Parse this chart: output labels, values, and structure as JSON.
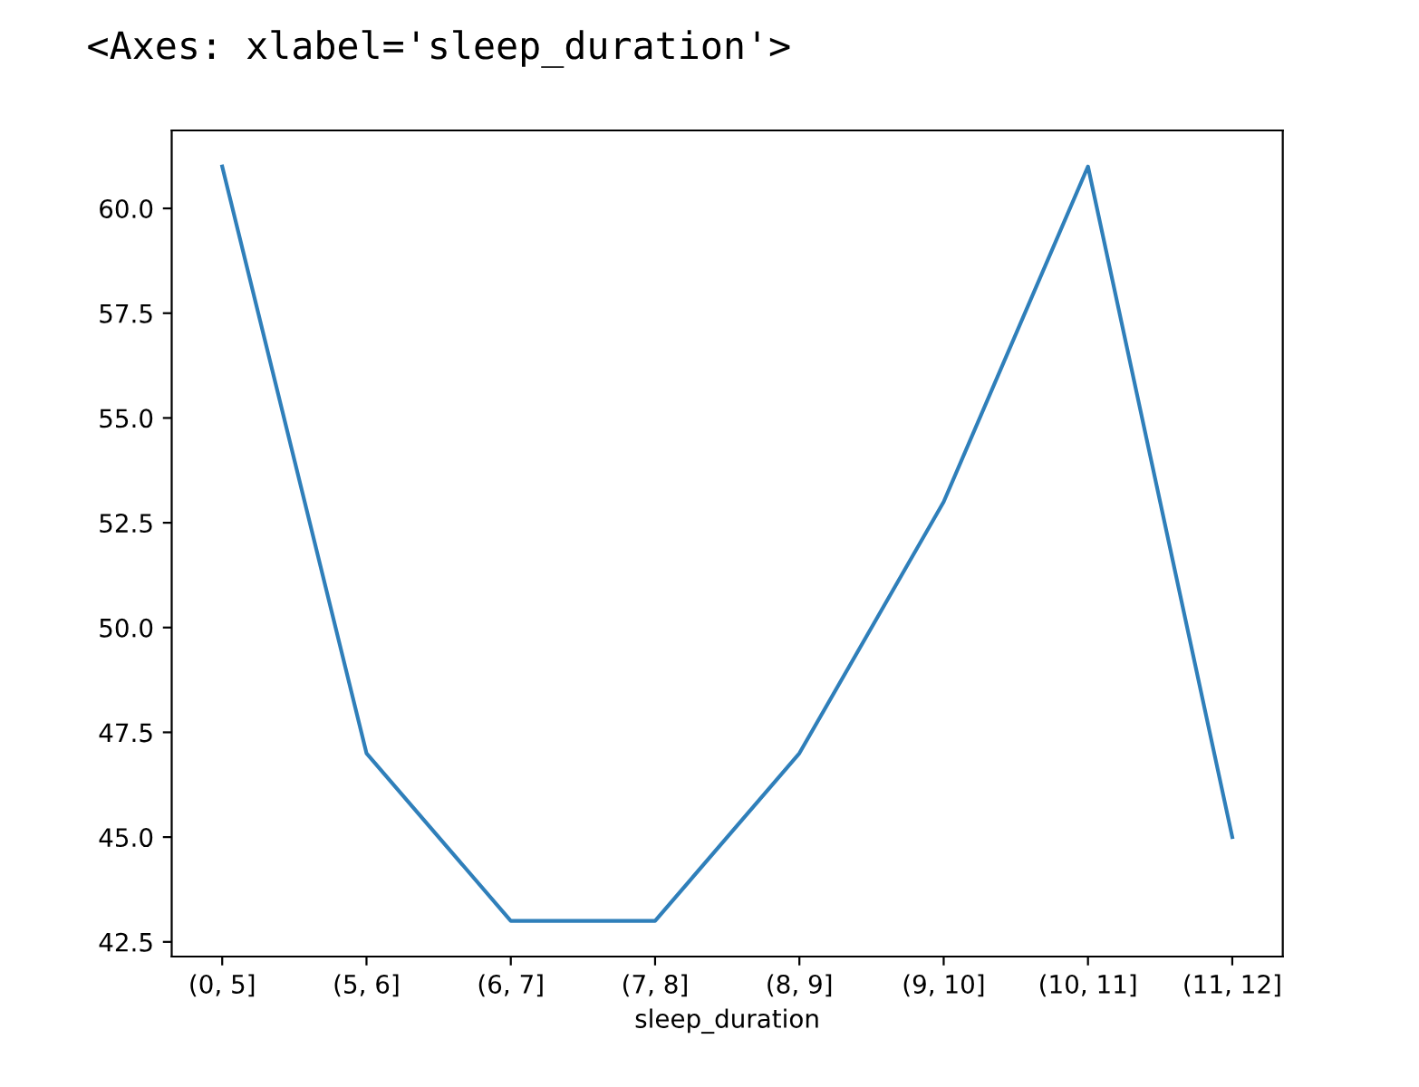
{
  "chart_data": {
    "type": "line",
    "xlabel": "sleep_duration",
    "annotations": [
      "<Axes: xlabel='sleep_duration'>"
    ],
    "categories": [
      "(0, 5]",
      "(5, 6]",
      "(6, 7]",
      "(7, 8]",
      "(8, 9]",
      "(9, 10]",
      "(10, 11]",
      "(11, 12]"
    ],
    "series": [
      {
        "color": "#2f7fba",
        "values": [
          61,
          47,
          43,
          43,
          47,
          53,
          61,
          45
        ]
      }
    ],
    "ylim": [
      42.15,
      61.86
    ],
    "yticks": [
      {
        "value": 42.5,
        "label": "42.5"
      },
      {
        "value": 45,
        "label": "45.0"
      },
      {
        "value": 47.5,
        "label": "47.5"
      },
      {
        "value": 50,
        "label": "50.0"
      },
      {
        "value": 52.5,
        "label": "52.5"
      },
      {
        "value": 55,
        "label": "55.0"
      },
      {
        "value": 57.5,
        "label": "57.5"
      },
      {
        "value": 60,
        "label": "60.0"
      }
    ],
    "grid": false,
    "legend": false
  }
}
